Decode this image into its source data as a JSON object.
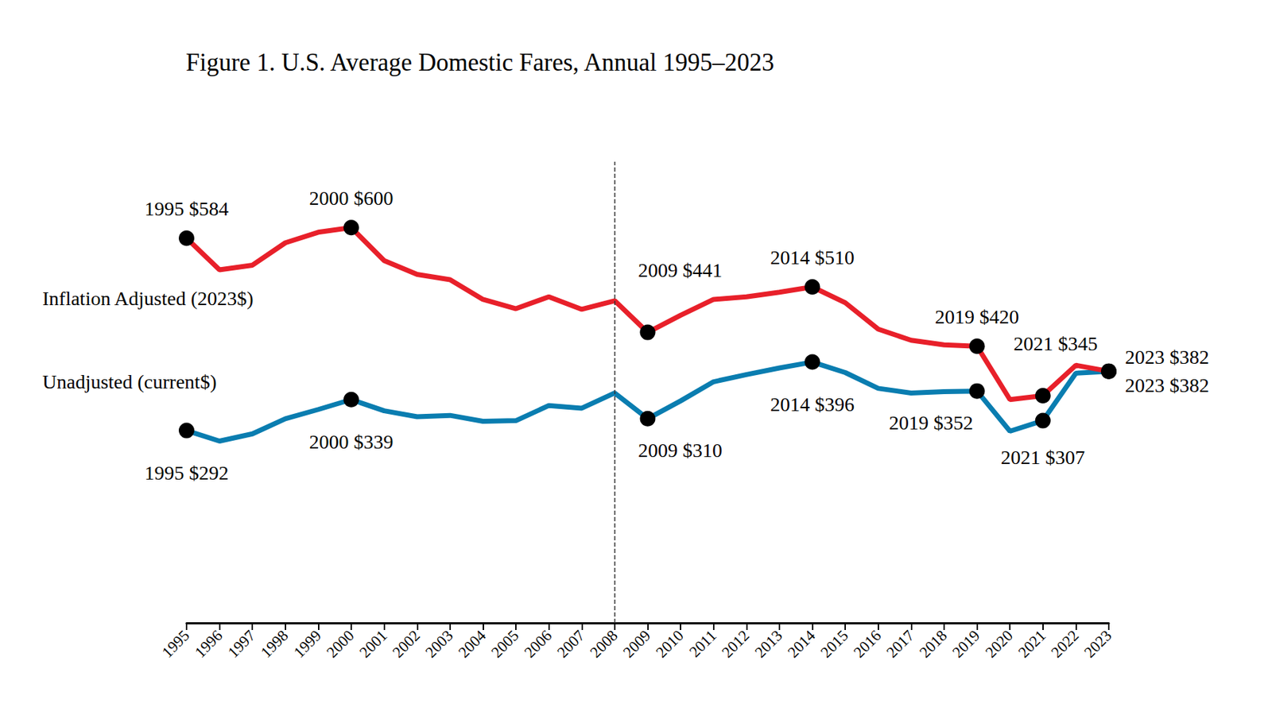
{
  "chart_data": {
    "type": "line",
    "title": "Figure 1. U.S. Average Domestic Fares, Annual 1995–2023",
    "categories": [
      "1995",
      "1996",
      "1997",
      "1998",
      "1999",
      "2000",
      "2001",
      "2002",
      "2003",
      "2004",
      "2005",
      "2006",
      "2007",
      "2008",
      "2009",
      "2010",
      "2011",
      "2012",
      "2013",
      "2014",
      "2015",
      "2016",
      "2017",
      "2018",
      "2019",
      "2020",
      "2021",
      "2022",
      "2023"
    ],
    "ylim": [
      0,
      700
    ],
    "grid": false,
    "tick_labels": "x",
    "marker": "circle",
    "vline": "2008",
    "series": [
      {
        "name": "Inflation Adjusted (2023$)",
        "color": "#e8202a",
        "values": [
          584,
          536,
          543,
          577,
          593,
          600,
          550,
          529,
          521,
          491,
          477,
          495,
          476,
          489,
          441,
          467,
          491,
          495,
          502,
          510,
          486,
          446,
          429,
          422,
          420,
          339,
          345,
          391,
          382
        ],
        "value_labels": [
          "1995 $584",
          null,
          null,
          null,
          null,
          "2000 $600",
          null,
          null,
          null,
          null,
          null,
          null,
          null,
          null,
          "2009 $441",
          null,
          null,
          null,
          null,
          "2014 $510",
          null,
          null,
          null,
          null,
          "2019 $420",
          null,
          "2021 $345",
          null,
          "2023 $382"
        ]
      },
      {
        "name": "Unadjusted (current$)",
        "color": "#0a7db0",
        "values": [
          292,
          276,
          287,
          310,
          324,
          339,
          322,
          313,
          315,
          306,
          307,
          330,
          326,
          349,
          310,
          337,
          366,
          377,
          387,
          396,
          380,
          356,
          349,
          351,
          352,
          291,
          307,
          379,
          382
        ],
        "value_labels": [
          "1995 $292",
          null,
          null,
          null,
          null,
          "2000 $339",
          null,
          null,
          null,
          null,
          null,
          null,
          null,
          null,
          "2009 $310",
          null,
          null,
          null,
          null,
          "2014 $396",
          null,
          null,
          null,
          null,
          "2019 $352",
          null,
          "2021 $307",
          null,
          "2023 $382"
        ]
      }
    ]
  }
}
